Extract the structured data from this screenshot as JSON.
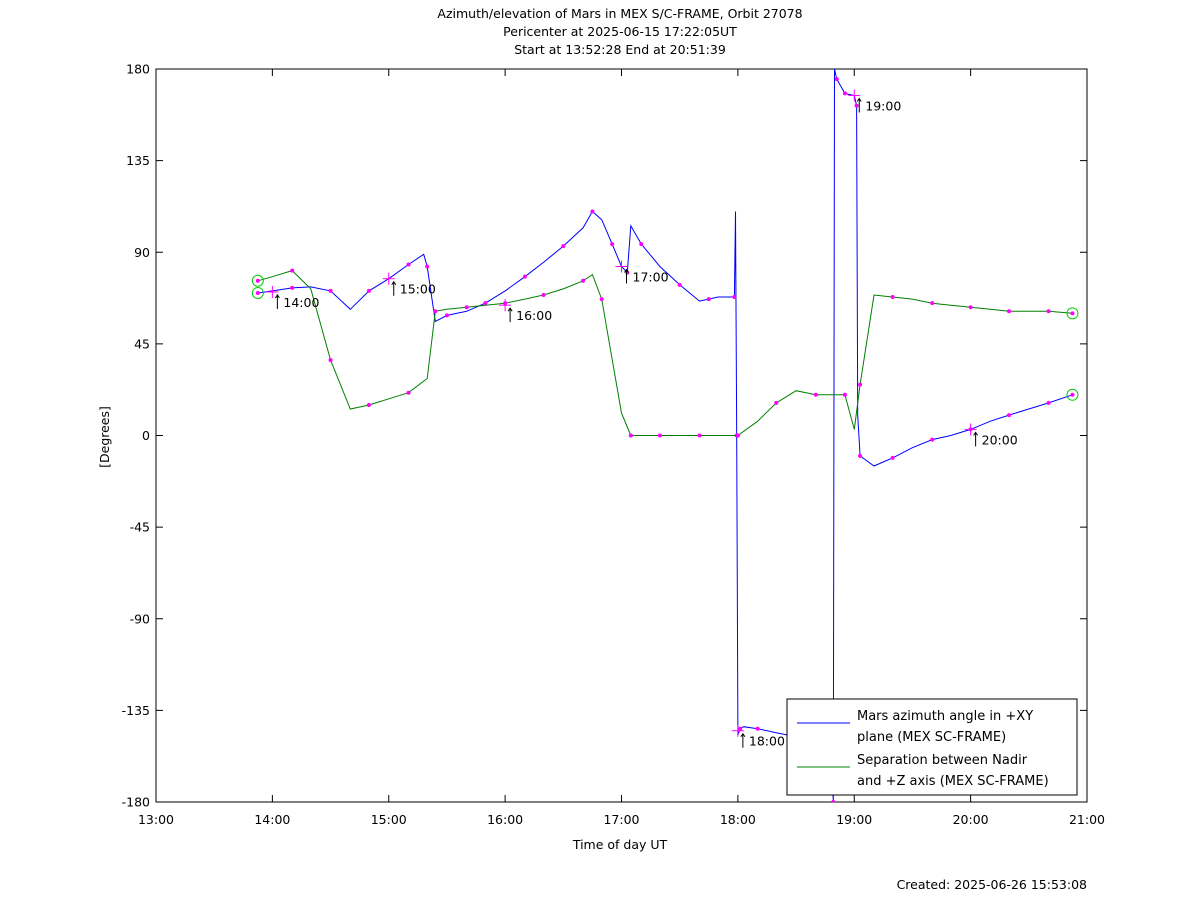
{
  "chart_data": {
    "type": "line",
    "title_lines": [
      "Azimuth/elevation of Mars in MEX S/C-FRAME,  Orbit 27078",
      "Pericenter at 2025-06-15 17:22:05UT",
      "Start at 13:52:28 End at 20:51:39"
    ],
    "xlabel": "Time of day UT",
    "ylabel": "[Degrees]",
    "xlim": [
      13,
      21
    ],
    "ylim": [
      -180,
      180
    ],
    "x_ticks": [
      13,
      14,
      15,
      16,
      17,
      18,
      19,
      20,
      21
    ],
    "x_tick_labels": [
      "13:00",
      "14:00",
      "15:00",
      "16:00",
      "17:00",
      "18:00",
      "19:00",
      "20:00",
      "21:00"
    ],
    "y_ticks": [
      -180,
      -135,
      -90,
      -45,
      0,
      45,
      90,
      135,
      180
    ],
    "y_tick_labels": [
      "-180",
      "-135",
      "-90",
      "-45",
      "0",
      "45",
      "90",
      "135",
      "180"
    ],
    "grid": false,
    "legend_position": "bottom-right",
    "time_markers": [
      {
        "label": "14:00",
        "x": 14.0,
        "y": 70.5
      },
      {
        "label": "15:00",
        "x": 15.0,
        "y": 77
      },
      {
        "label": "16:00",
        "x": 16.0,
        "y": 64
      },
      {
        "label": "17:00",
        "x": 17.0,
        "y": 83
      },
      {
        "label": "18:00",
        "x": 18.0,
        "y": -145
      },
      {
        "label": "19:00",
        "x": 19.0,
        "y": 167
      },
      {
        "label": "20:00",
        "x": 20.0,
        "y": 3
      }
    ],
    "series": [
      {
        "name": "Mars azimuth angle in +XY plane (MEX SC-FRAME)",
        "legend_lines": [
          "Mars azimuth angle in +XY",
          "plane (MEX SC-FRAME)"
        ],
        "color": "#0000ff",
        "x": [
          13.875,
          14.0,
          14.17,
          14.33,
          14.5,
          14.67,
          14.83,
          15.0,
          15.17,
          15.3,
          15.33,
          15.4,
          15.5,
          15.67,
          15.83,
          16.0,
          16.17,
          16.33,
          16.5,
          16.67,
          16.75,
          16.83,
          16.92,
          17.0,
          17.05,
          17.08,
          17.17,
          17.33,
          17.5,
          17.67,
          17.75,
          17.83,
          17.97,
          17.98,
          17.99,
          18.0,
          18.02,
          18.05,
          18.17,
          18.33,
          18.5,
          18.67,
          18.75,
          18.8,
          18.82,
          18.83,
          18.85,
          18.9,
          18.92,
          19.0,
          19.02,
          19.03,
          19.05,
          19.17,
          19.33,
          19.5,
          19.67,
          19.83,
          20.0,
          20.17,
          20.33,
          20.5,
          20.67,
          20.875
        ],
        "y": [
          70,
          71,
          72.5,
          73,
          71,
          62,
          71,
          77,
          84,
          89,
          83,
          56,
          59,
          61,
          65,
          71,
          78,
          85,
          93,
          102,
          110,
          106,
          94,
          83,
          80,
          103,
          94,
          83,
          74,
          66,
          67,
          68,
          68,
          110,
          0,
          -147,
          -144,
          -143,
          -144,
          -146,
          -148,
          -148,
          -149,
          -150,
          -180,
          180,
          175,
          170,
          168,
          167,
          162,
          10,
          -10,
          -15,
          -11,
          -6,
          -2,
          0,
          3,
          7,
          10,
          13,
          16,
          20
        ]
      },
      {
        "name": "Separation between Nadir and +Z axis (MEX SC-FRAME)",
        "legend_lines": [
          "Separation between Nadir",
          "and +Z axis (MEX SC-FRAME)"
        ],
        "color": "#008000",
        "x": [
          13.875,
          14.0,
          14.17,
          14.33,
          14.5,
          14.67,
          14.83,
          15.0,
          15.17,
          15.33,
          15.4,
          15.5,
          15.67,
          15.83,
          16.0,
          16.17,
          16.33,
          16.5,
          16.67,
          16.75,
          16.83,
          17.0,
          17.08,
          17.17,
          17.33,
          17.5,
          17.67,
          17.83,
          18.0,
          18.17,
          18.33,
          18.5,
          18.67,
          18.83,
          18.92,
          19.0,
          19.05,
          19.17,
          19.33,
          19.5,
          19.67,
          19.83,
          20.0,
          20.17,
          20.33,
          20.5,
          20.67,
          20.875
        ],
        "y": [
          76,
          78,
          81,
          72,
          37,
          13,
          15,
          18,
          21,
          28,
          61,
          62,
          63,
          64,
          65,
          67,
          69,
          72,
          76,
          79,
          67,
          11,
          0,
          0,
          0,
          0,
          0,
          0,
          0,
          7,
          16,
          22,
          20,
          20,
          20,
          3,
          25,
          69,
          68,
          67,
          65,
          64,
          63,
          62,
          61,
          61,
          61,
          60
        ]
      }
    ],
    "footer": "Created: 2025-06-26 15:53:08"
  }
}
